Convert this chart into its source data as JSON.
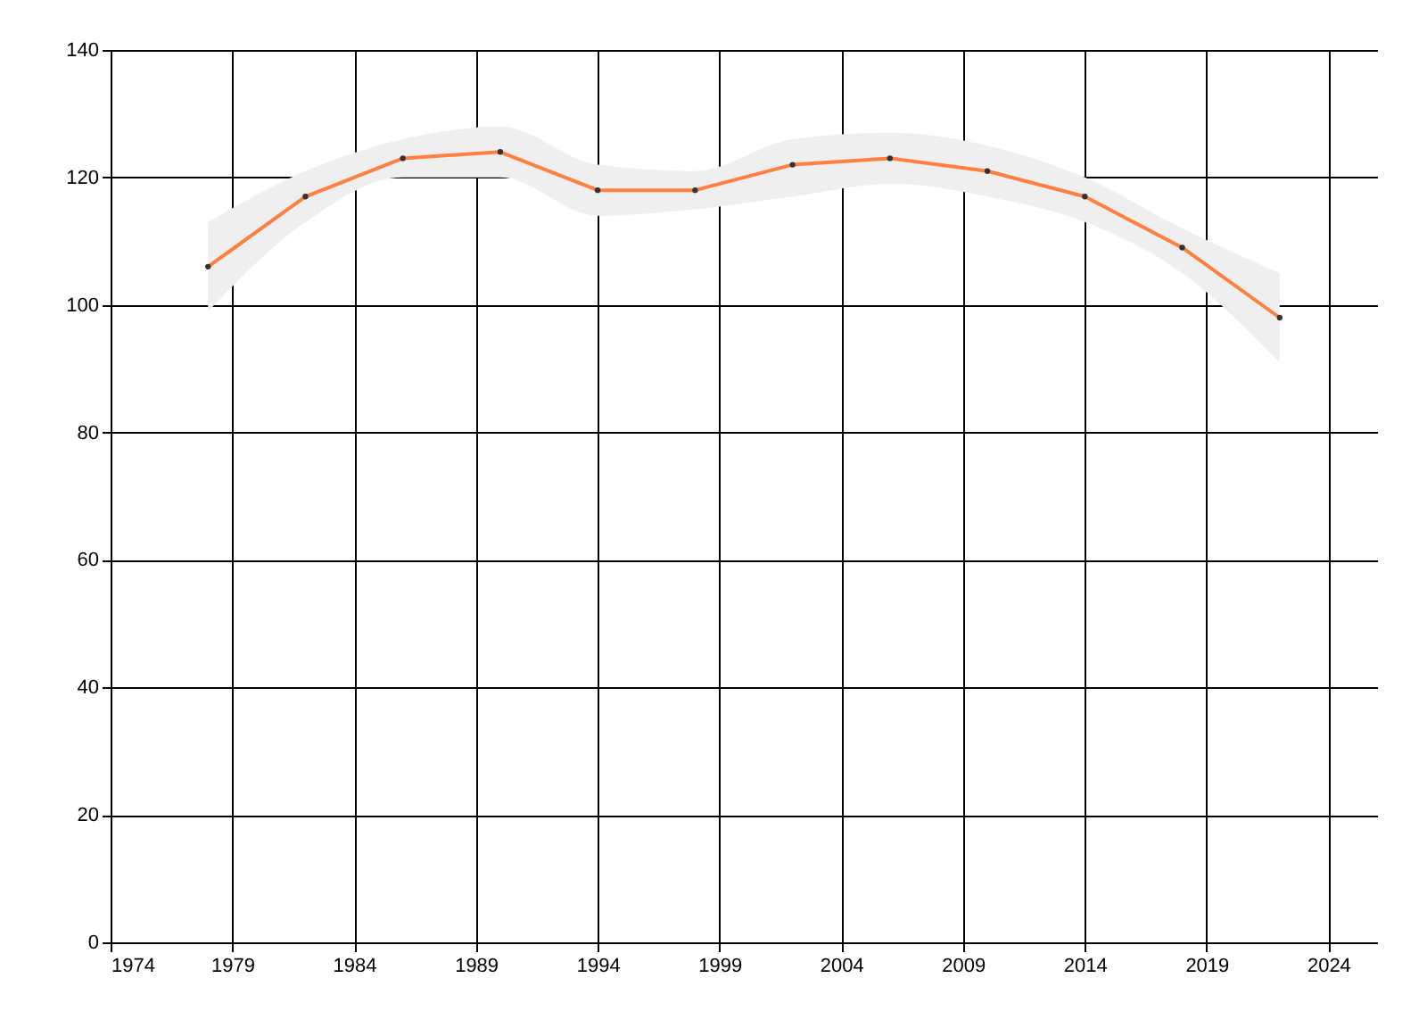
{
  "chart_data": {
    "type": "line",
    "x": [
      1978,
      1982,
      1986,
      1990,
      1994,
      1998,
      2002,
      2006,
      2010,
      2014,
      2018,
      2022
    ],
    "series": [
      {
        "color": "#ff7f3f",
        "values": [
          106,
          117,
          123,
          124,
          118,
          118,
          122,
          123,
          121,
          117,
          109,
          98
        ],
        "lower": [
          99,
          113,
          120,
          120,
          114,
          115,
          117,
          119,
          117,
          113,
          105,
          91
        ],
        "upper": [
          113,
          121,
          126,
          128,
          122,
          121,
          126,
          127,
          125,
          120,
          112,
          105
        ]
      }
    ],
    "xlim": [
      1974,
      2026
    ],
    "xticks": [
      1974,
      1979,
      1984,
      1989,
      1994,
      1999,
      2004,
      2009,
      2014,
      2019,
      2024
    ],
    "ylim": [
      0,
      140
    ],
    "yticks": [
      0,
      20,
      40,
      60,
      80,
      100,
      120,
      140
    ],
    "grid": true,
    "marker": "circle",
    "line_style": "solid"
  }
}
